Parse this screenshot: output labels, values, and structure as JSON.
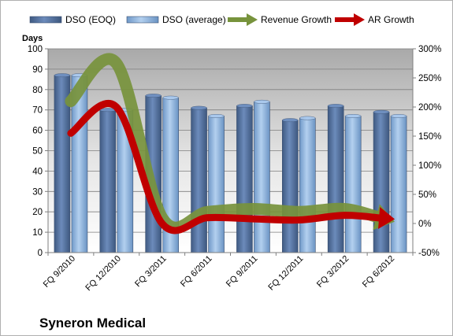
{
  "company_label": "Syneron Medical",
  "chart_data": {
    "type": "bar",
    "title": "",
    "categories": [
      "FQ 9/2010",
      "FQ 12/2010",
      "FQ 3/2011",
      "FQ 6/2011",
      "FQ 9/2011",
      "FQ 12/2011",
      "FQ 3/2012",
      "FQ 6/2012"
    ],
    "ylabel": "Days",
    "ylim": [
      0,
      100
    ],
    "yticks": [
      0,
      10,
      20,
      30,
      40,
      50,
      60,
      70,
      80,
      90,
      100
    ],
    "y2lim": [
      -50,
      300
    ],
    "y2ticks": [
      "-50%",
      "0%",
      "50%",
      "100%",
      "150%",
      "200%",
      "250%",
      "300%"
    ],
    "y2tick_values": [
      -50,
      0,
      50,
      100,
      150,
      200,
      250,
      300
    ],
    "legend_position": "top",
    "grid": true,
    "series": [
      {
        "name": "DSO (EOQ)",
        "kind": "bar",
        "axis": "left",
        "color": "#4f6d9a",
        "values": [
          87,
          70,
          77,
          71,
          72,
          65,
          72,
          69
        ]
      },
      {
        "name": "DSO (average)",
        "kind": "bar",
        "axis": "left",
        "color": "#8db4e2",
        "values": [
          87,
          70,
          76,
          67,
          74,
          66,
          67,
          67
        ]
      },
      {
        "name": "Revenue Growth",
        "kind": "line-arrow",
        "axis": "right",
        "unit": "%",
        "color": "#77933c",
        "values": [
          210,
          275,
          10,
          20,
          25,
          20,
          25,
          5
        ]
      },
      {
        "name": "AR Growth",
        "kind": "line-arrow",
        "axis": "right",
        "unit": "%",
        "color": "#c00000",
        "values": [
          155,
          200,
          0,
          10,
          8,
          6,
          14,
          8
        ]
      }
    ]
  }
}
